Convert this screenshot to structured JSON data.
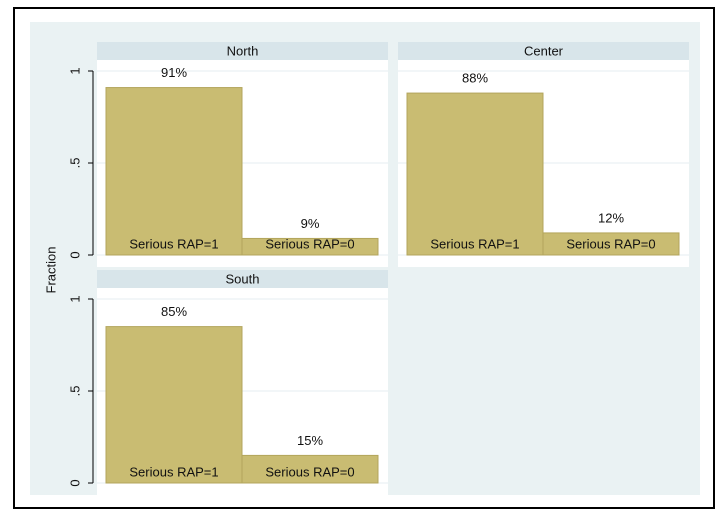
{
  "chart_data": {
    "type": "bar",
    "y_label": "Fraction",
    "color": "#c9bc72",
    "ylim": [
      0,
      1
    ],
    "yticks": [
      0,
      {
        "value": 0.5,
        "label": ".5"
      },
      1
    ],
    "grid": true,
    "categories": [
      "Serious RAP=1",
      "Serious RAP=0"
    ],
    "panels": [
      {
        "title": "North",
        "values": [
          0.91,
          0.09
        ],
        "value_labels": [
          "91%",
          "9%"
        ]
      },
      {
        "title": "Center",
        "values": [
          0.88,
          0.12
        ],
        "value_labels": [
          "88%",
          "12%"
        ]
      },
      {
        "title": "South",
        "values": [
          0.85,
          0.15
        ],
        "value_labels": [
          "85%",
          "15%"
        ]
      }
    ]
  }
}
